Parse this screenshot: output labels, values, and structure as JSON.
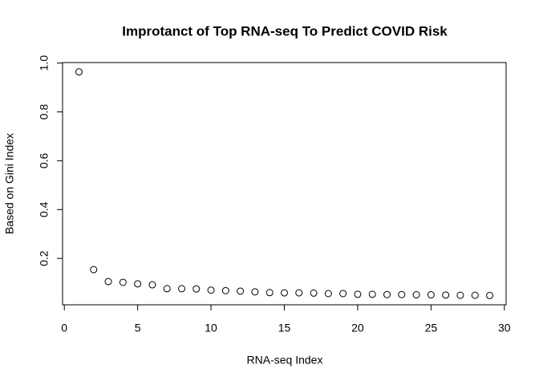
{
  "chart_data": {
    "type": "scatter",
    "title": "Improtanct of Top RNA-seq To Predict COVID Risk",
    "x_label": "RNA-seq Index",
    "y_label": "Based on Gini Index",
    "x": [
      1,
      2,
      3,
      4,
      5,
      6,
      7,
      8,
      9,
      10,
      11,
      12,
      13,
      14,
      15,
      16,
      17,
      18,
      19,
      20,
      21,
      22,
      23,
      24,
      25,
      26,
      27,
      28,
      29
    ],
    "values": [
      0.964,
      0.154,
      0.105,
      0.102,
      0.096,
      0.092,
      0.076,
      0.076,
      0.075,
      0.07,
      0.068,
      0.066,
      0.063,
      0.06,
      0.059,
      0.059,
      0.058,
      0.056,
      0.056,
      0.053,
      0.053,
      0.052,
      0.052,
      0.051,
      0.051,
      0.05,
      0.049,
      0.049,
      0.048
    ],
    "color": "#000000",
    "xlim": [
      -0.12,
      30.12
    ],
    "xticks": [
      0,
      5,
      10,
      15,
      20,
      25,
      30
    ],
    "ylim": [
      0.01,
      1.002
    ],
    "yticks": [
      0.2,
      0.4,
      0.6,
      0.8,
      {
        "value": 1,
        "label": "1.0"
      }
    ]
  }
}
